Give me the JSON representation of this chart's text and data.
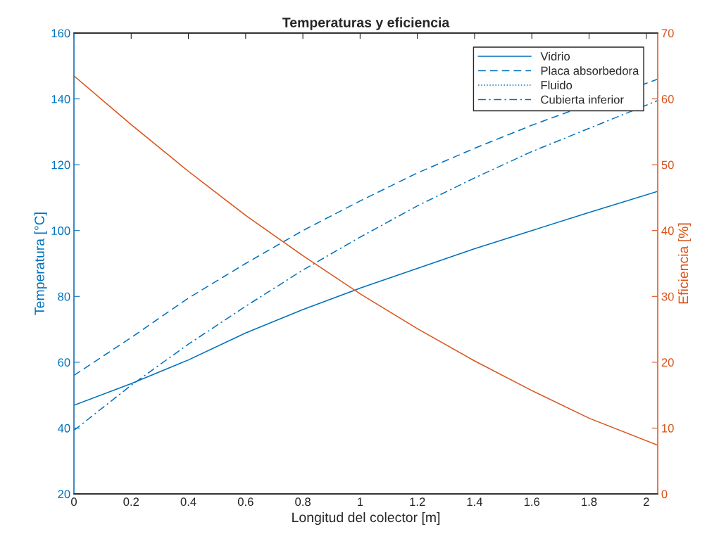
{
  "chart_data": {
    "type": "line",
    "title": "Temperaturas y eficiencia",
    "xlabel": "Longitud del colector [m]",
    "ylabel": "Temperatura [°C]",
    "y2label": "Eficiencia [%]",
    "x": [
      0,
      0.2,
      0.4,
      0.6,
      0.8,
      1.0,
      1.2,
      1.4,
      1.6,
      1.8,
      2.04
    ],
    "series": [
      {
        "name": "Vidrio",
        "color": "#0072bd",
        "line_style": "solid",
        "values": [
          46.9,
          53.5,
          60.7,
          68.9,
          76,
          82.5,
          88.5,
          94.5,
          100,
          105.5,
          111.9
        ]
      },
      {
        "name": "Placa absorbedora",
        "color": "#0072bd",
        "line_style": "dashed",
        "x": [
          0,
          0.2,
          0.4,
          0.6,
          0.8,
          1.0,
          1.2,
          1.4,
          1.6,
          2.04
        ],
        "values": [
          56,
          67.5,
          79.5,
          90,
          100,
          109,
          117.5,
          125,
          132,
          146
        ]
      },
      {
        "name": "Fluido",
        "color": "#0072bd",
        "line_style": "dotted",
        "values": [
          null,
          null,
          null,
          null,
          null,
          null,
          null,
          null,
          null,
          null,
          null
        ]
      },
      {
        "name": "Cubierta inferior",
        "color": "#0072bd",
        "line_style": "dashdot",
        "x": [
          0,
          0.2,
          0.4,
          0.6,
          0.8,
          1.0,
          1.2,
          1.4,
          1.6,
          2.04
        ],
        "values": [
          39.3,
          53,
          65.5,
          77,
          88,
          98,
          107.5,
          116,
          124,
          139.5
        ]
      },
      {
        "color": "#d95319",
        "axis": "y2",
        "line_style": "solid",
        "values": [
          63.5,
          56.1,
          49,
          42.3,
          36.2,
          30.4,
          25.1,
          20.2,
          15.7,
          11.5,
          7.4
        ]
      }
    ],
    "xlim": [
      0,
      2.04
    ],
    "xticks": [
      0,
      0.2,
      0.4,
      0.6,
      0.8,
      1,
      1.2,
      1.4,
      1.6,
      1.8,
      2
    ],
    "ylim": [
      20,
      160
    ],
    "yticks": [
      20,
      40,
      60,
      80,
      100,
      120,
      140,
      160
    ],
    "y2lim": [
      0,
      70
    ],
    "y2ticks": [
      0,
      10,
      20,
      30,
      40,
      50,
      60,
      70
    ],
    "grid": false,
    "legend": "top right",
    "marker": "none"
  }
}
